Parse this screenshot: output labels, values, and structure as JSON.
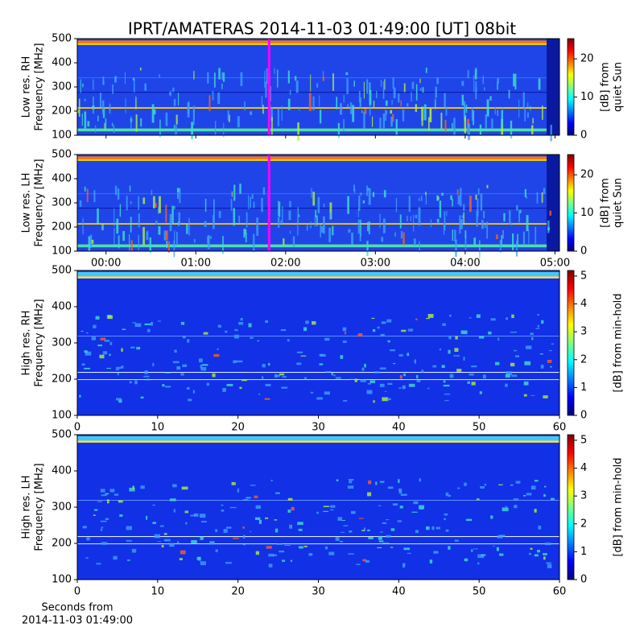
{
  "chart_data": [
    {
      "type": "heatmap",
      "title": "IPRT/AMATERAS 2014-11-03 01:49:00 [UT]   08bit",
      "ylabel": [
        "Low res. RH",
        "Frequency [MHz]"
      ],
      "xlim": [
        -0.32,
        5.05
      ],
      "xticks": [
        0,
        1,
        2,
        3,
        4,
        5
      ],
      "ylim": [
        100,
        500
      ],
      "yticks": [
        100,
        200,
        300,
        400,
        500
      ],
      "cursor": {
        "x": 1.8167,
        "color": "#ff00ff"
      },
      "colorbar": {
        "label": [
          "[dB] from",
          "quiet Sun"
        ],
        "lim": [
          0,
          25.3
        ],
        "ticks": [
          0,
          10,
          20
        ]
      }
    },
    {
      "type": "heatmap",
      "ylabel": [
        "Low res. LH",
        "Frequency [MHz]"
      ],
      "xlim": [
        -0.32,
        5.05
      ],
      "xticks": [
        {
          "value": 0,
          "label": "00:00"
        },
        {
          "value": 1,
          "label": "01:00"
        },
        {
          "value": 2,
          "label": "02:00"
        },
        {
          "value": 3,
          "label": "03:00"
        },
        {
          "value": 4,
          "label": "04:00"
        },
        {
          "value": 5,
          "label": "05:00"
        }
      ],
      "ylim": [
        100,
        500
      ],
      "yticks": [
        100,
        200,
        300,
        400,
        500
      ],
      "cursor": {
        "x": 1.8167,
        "color": "#ff00ff"
      },
      "colorbar": {
        "label": [
          "[dB] from",
          "quiet Sun"
        ],
        "lim": [
          0,
          25.3
        ],
        "ticks": [
          0,
          10,
          20
        ]
      }
    },
    {
      "type": "heatmap",
      "ylabel": [
        "High res. RH",
        "Frequency [MHz]"
      ],
      "xlim": [
        0,
        60
      ],
      "xticks": [
        0,
        10,
        20,
        30,
        40,
        50,
        60
      ],
      "ylim": [
        100,
        500
      ],
      "yticks": [
        100,
        200,
        300,
        400,
        500
      ],
      "colorbar": {
        "label": [
          "[dB] from min-hold"
        ],
        "lim": [
          0,
          5.2
        ],
        "ticks": [
          0,
          1,
          2,
          3,
          4,
          5
        ]
      }
    },
    {
      "type": "heatmap",
      "ylabel": [
        "High res. LH",
        "Frequency [MHz]"
      ],
      "xlabel": [
        "Seconds from",
        "2014-11-03 01:49:00"
      ],
      "xlim": [
        0,
        60
      ],
      "xticks": [
        0,
        10,
        20,
        30,
        40,
        50,
        60
      ],
      "ylim": [
        100,
        500
      ],
      "yticks": [
        100,
        200,
        300,
        400,
        500
      ],
      "colorbar": {
        "label": [
          "[dB] from min-hold"
        ],
        "lim": [
          0,
          5.2
        ],
        "ticks": [
          0,
          1,
          2,
          3,
          4,
          5
        ]
      }
    }
  ]
}
